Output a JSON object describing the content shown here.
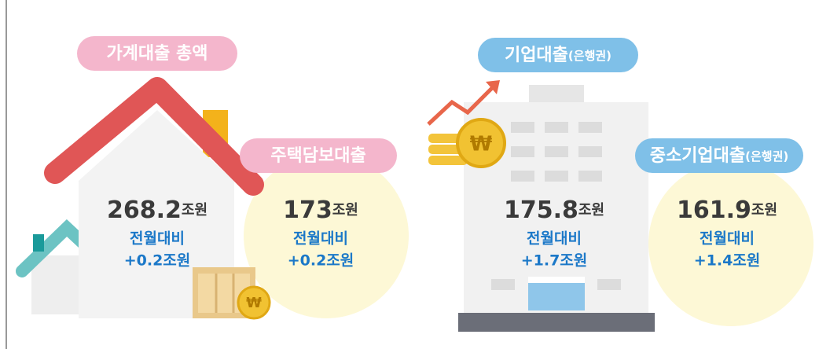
{
  "items": [
    {
      "label": "가계대출 총액",
      "value": 268.2,
      "unit": "조원",
      "change_label": "전월대비",
      "change": "+0.2조원"
    },
    {
      "label": "주택담보대출",
      "value": 173,
      "unit": "조원",
      "change_label": "전월대비",
      "change": "+0.2조원"
    },
    {
      "label": "기업대출",
      "label_note": "(은행권)",
      "value": 175.8,
      "unit": "조원",
      "change_label": "전월대비",
      "change": "+1.7조원"
    },
    {
      "label": "중소기업대출",
      "label_note": "(은행권)",
      "value": 161.9,
      "unit": "조원",
      "change_label": "전월대비",
      "change": "+1.4조원"
    }
  ]
}
